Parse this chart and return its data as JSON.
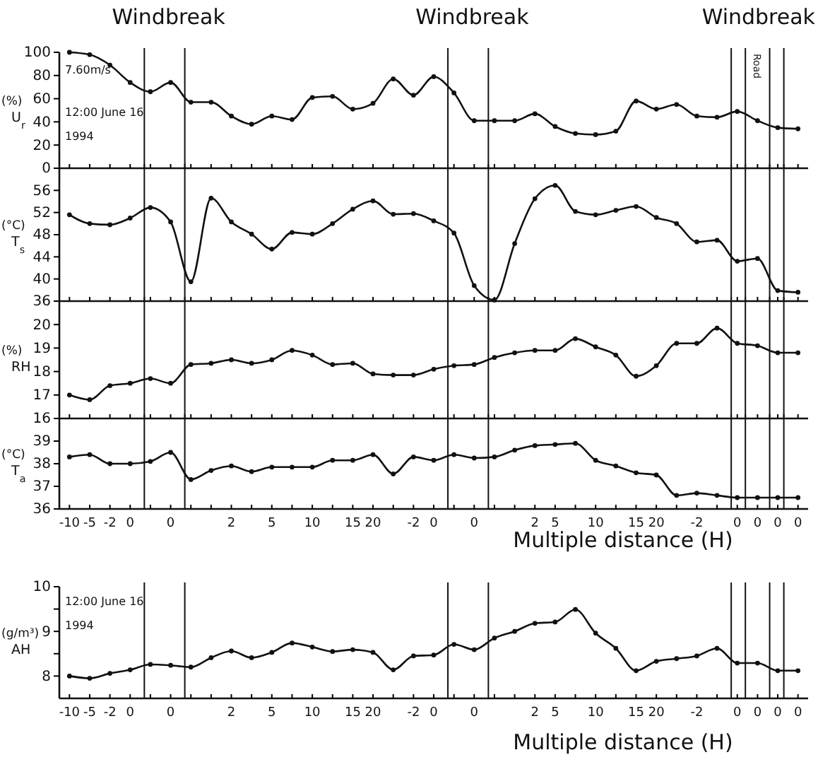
{
  "chart_data": [
    {
      "type": "line",
      "ylabel": "(%) U$_{r}$",
      "color": "#111111",
      "marker": "circle",
      "line_style": "solid",
      "tick_labels": "y",
      "annotations": [
        "Windbreak",
        "Windbreak",
        "Windbreak",
        "Road",
        "7.60m/s",
        "12:00 June 16",
        "1994"
      ],
      "categories": [
        "-10",
        "-5",
        "-2",
        "0",
        null,
        "0",
        null,
        null,
        "2",
        null,
        "5",
        null,
        "10",
        null,
        "15",
        "20",
        null,
        "-2",
        "0",
        null,
        "0",
        null,
        null,
        "2",
        "5",
        null,
        "10",
        null,
        "15",
        "20",
        null,
        "-2",
        null,
        "0",
        "0",
        "0",
        "0"
      ],
      "values": [
        100,
        98,
        89,
        74,
        66,
        74,
        57,
        57,
        45,
        38,
        45,
        42,
        61,
        62,
        51,
        56,
        77,
        63,
        79,
        65,
        41,
        41,
        41,
        47,
        36,
        30,
        29,
        32,
        58,
        51,
        55,
        45,
        44,
        49,
        41,
        35,
        34
      ],
      "ylim": [
        0,
        100
      ],
      "yticks": [
        0,
        20,
        40,
        60,
        80,
        100
      ]
    },
    {
      "type": "line",
      "ylabel": "(°C) T$_{s}$",
      "color": "#111111",
      "marker": "circle",
      "line_style": "solid",
      "tick_labels": "y",
      "categories": [
        "-10",
        "-5",
        "-2",
        "0",
        null,
        "0",
        null,
        null,
        "2",
        null,
        "5",
        null,
        "10",
        null,
        "15",
        "20",
        null,
        "-2",
        "0",
        null,
        "0",
        null,
        null,
        "2",
        "5",
        null,
        "10",
        null,
        "15",
        "20",
        null,
        "-2",
        null,
        "0",
        "0",
        "0",
        "0"
      ],
      "values": [
        51.6,
        50,
        49.8,
        51,
        52.9,
        50.3,
        39.5,
        54.6,
        50.3,
        48.1,
        45.4,
        48.4,
        48.1,
        50,
        52.6,
        54.1,
        51.7,
        51.8,
        50.5,
        48.3,
        38.8,
        36.2,
        46.4,
        54.5,
        56.9,
        52.2,
        51.6,
        52.4,
        53.1,
        51.1,
        50,
        46.7,
        47,
        43.2,
        43.7,
        37.9,
        37.6
      ],
      "ylim": [
        36,
        60
      ],
      "yticks": [
        36,
        40,
        44,
        48,
        52,
        56
      ]
    },
    {
      "type": "line",
      "ylabel": "(%) RH",
      "color": "#111111",
      "marker": "circle",
      "line_style": "solid",
      "tick_labels": "y",
      "categories": [
        "-10",
        "-5",
        "-2",
        "0",
        null,
        "0",
        null,
        null,
        "2",
        null,
        "5",
        null,
        "10",
        null,
        "15",
        "20",
        null,
        "-2",
        "0",
        null,
        "0",
        null,
        null,
        "2",
        "5",
        null,
        "10",
        null,
        "15",
        "20",
        null,
        "-2",
        null,
        "0",
        "0",
        "0",
        "0"
      ],
      "values": [
        17.0,
        16.8,
        17.4,
        17.5,
        17.7,
        17.5,
        18.3,
        18.35,
        18.5,
        18.35,
        18.5,
        18.9,
        18.7,
        18.3,
        18.35,
        17.9,
        17.85,
        17.85,
        18.1,
        18.25,
        18.3,
        18.6,
        18.8,
        18.9,
        18.9,
        19.4,
        19.05,
        18.7,
        17.8,
        18.25,
        19.2,
        19.2,
        19.85,
        19.2,
        19.1,
        18.8,
        18.8
      ],
      "ylim": [
        16,
        21
      ],
      "yticks": [
        16,
        17,
        18,
        19,
        20
      ]
    },
    {
      "type": "line",
      "ylabel": "(°C) T$_{a}$",
      "xlabel": "Multiple distance (H)",
      "color": "#111111",
      "marker": "circle",
      "line_style": "solid",
      "categories": [
        "-10",
        "-5",
        "-2",
        "0",
        null,
        "0",
        null,
        null,
        "2",
        null,
        "5",
        null,
        "10",
        null,
        "15",
        "20",
        null,
        "-2",
        "0",
        null,
        "0",
        null,
        null,
        "2",
        "5",
        null,
        "10",
        null,
        "15",
        "20",
        null,
        "-2",
        null,
        "0",
        "0",
        "0",
        "0"
      ],
      "values": [
        38.3,
        38.4,
        38.0,
        38.0,
        38.1,
        38.5,
        37.3,
        37.7,
        37.9,
        37.65,
        37.85,
        37.85,
        37.85,
        38.15,
        38.15,
        38.4,
        37.55,
        38.3,
        38.15,
        38.4,
        38.25,
        38.3,
        38.6,
        38.8,
        38.85,
        38.9,
        38.15,
        37.9,
        37.6,
        37.5,
        36.6,
        36.7,
        36.6,
        36.5,
        36.5,
        36.5,
        36.5
      ],
      "ylim": [
        36,
        40
      ],
      "yticks": [
        36,
        37,
        38,
        39
      ]
    },
    {
      "type": "line",
      "ylabel": "(g/m³) AH",
      "xlabel": "Multiple distance (H)",
      "color": "#111111",
      "marker": "circle",
      "line_style": "solid",
      "annotations": [
        "12:00 June 16",
        "1994"
      ],
      "categories": [
        "-10",
        "-5",
        "-2",
        "0",
        null,
        "0",
        null,
        null,
        "2",
        null,
        "5",
        null,
        "10",
        null,
        "15",
        "20",
        null,
        "-2",
        "0",
        null,
        "0",
        null,
        null,
        "2",
        "5",
        null,
        "10",
        null,
        "15",
        "20",
        null,
        "-2",
        null,
        "0",
        "0",
        "0",
        "0"
      ],
      "values": [
        8.0,
        7.95,
        8.06,
        8.14,
        8.26,
        8.24,
        8.2,
        8.41,
        8.56,
        8.41,
        8.53,
        8.74,
        8.65,
        8.55,
        8.59,
        8.53,
        8.14,
        8.45,
        8.47,
        8.71,
        8.59,
        8.85,
        9.0,
        9.18,
        9.21,
        9.49,
        8.96,
        8.62,
        8.12,
        8.33,
        8.39,
        8.45,
        8.62,
        8.29,
        8.29,
        8.12,
        8.12
      ],
      "ylim": [
        7.5,
        10
      ],
      "yticks": [
        8,
        {
          "value": 8.5,
          "label": null
        },
        9,
        {
          "value": 9.5,
          "label": null
        },
        10
      ]
    }
  ]
}
